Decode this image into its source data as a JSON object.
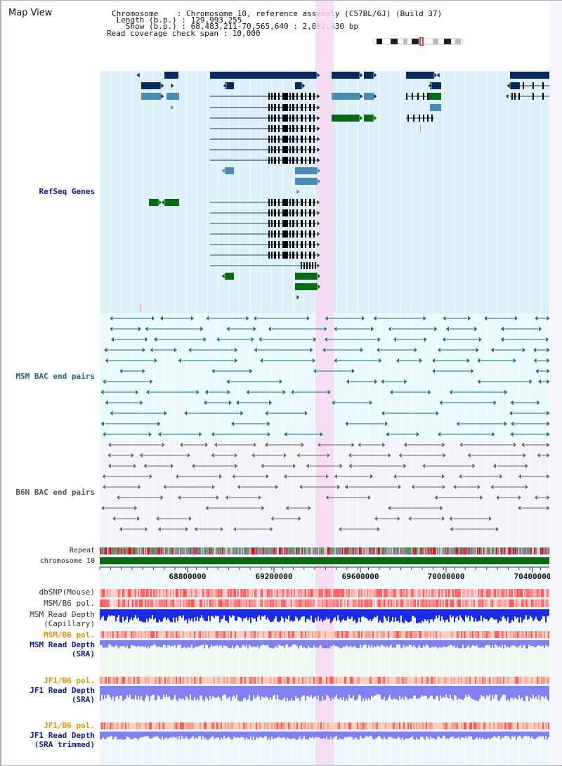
{
  "view_title": "Map View",
  "info": {
    "chromosome": "Chromosome    : Chromosome 10, reference assembly (C57BL/6J) (Build 37)",
    "length": " Length (b.p.) : 129,993,255",
    "show": "   Show (b.p.) : 68,483,211-70,565,640 : 2,082,430 bp",
    "read_span": "Read coverage check span : 10,000"
  },
  "tracks": {
    "refseq": "RefSeq Genes",
    "msm_bac": "MSM BAC end pairs",
    "b6n_bac": "B6N BAC end pairs",
    "repeat": "Repeat",
    "chromosome": "chromosome 10",
    "dbsnp": "dbSNP(Mouse)",
    "msm_b6_pol": "MSM/B6 pol.",
    "msm_depth_cap": "MSM Read Depth",
    "msm_depth_cap_sub": "(Capillary)",
    "msm_b6_pol_sra": "MSM/B6 pol.",
    "msm_depth_sra": "MSM Read Depth",
    "msm_depth_sra_sub": "(SRA)",
    "jf1_b6_pol": "JF1/B6 pol.",
    "jf1_depth": "JF1 Read Depth",
    "jf1_depth_sub": "(SRA)",
    "jf1_b6_pol_trim": "JF1/B6 pol.",
    "jf1_depth_trim": "JF1 Read Depth",
    "jf1_depth_trim_sub": "(SRA trimmed)"
  },
  "axis": {
    "ticks": [
      "68800000",
      "69200000",
      "69600000",
      "70000000",
      "70400000"
    ]
  },
  "colors": {
    "refseq_bg": "#dcf0fa",
    "msm_bg": "#e9fafa",
    "b6n_bg": "#f3f3f8",
    "highlight": "#f8d8f0",
    "gene_navy": "#0b2a5c",
    "gene_blue": "#4a8ab5",
    "gene_green": "#0a6a14",
    "msm_line": "#1a6a86",
    "b6n_line": "#666666",
    "chromosome": "#0a6a14",
    "depth_blue": "#1a2ae6",
    "depth_light": "#8080f0",
    "label_blue": "#0a1a9a",
    "label_orange": "#e89000"
  }
}
